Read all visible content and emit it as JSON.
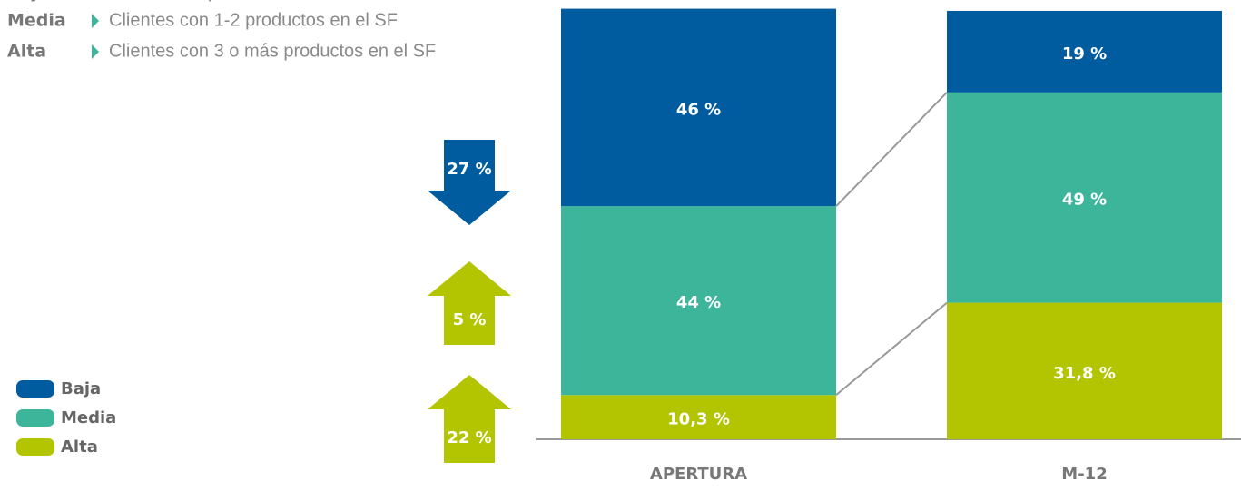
{
  "chart_data": {
    "type": "stacked_bar",
    "categories": [
      "APERTURA",
      "M-12"
    ],
    "series": [
      {
        "name": "Alta",
        "color": "#b3c500",
        "values": [
          10.3,
          31.8
        ],
        "value_labels": [
          "10,3 %",
          "31,8 %"
        ]
      },
      {
        "name": "Media",
        "color": "#3cb59b",
        "values": [
          44,
          49
        ],
        "value_labels": [
          "44 %",
          "49 %"
        ]
      },
      {
        "name": "Baja",
        "color": "#005b9f",
        "values": [
          46,
          19
        ],
        "value_labels": [
          "46 %",
          "19 %"
        ]
      }
    ],
    "ylim": [
      0,
      100
    ],
    "descriptions": [
      {
        "name": "Baja",
        "text": "Clientes sin productos en el SF"
      },
      {
        "name": "Media",
        "text": "Clientes con 1-2 productos en el SF"
      },
      {
        "name": "Alta",
        "text": "Clientes con 3 o más productos en el SF"
      }
    ],
    "annotations": [
      {
        "value": 27,
        "label": "27 %",
        "direction": "down",
        "color": "#005b9f"
      },
      {
        "value": 5,
        "label": "5 %",
        "direction": "up",
        "color": "#b3c500"
      },
      {
        "value": 22,
        "label": "22 %",
        "direction": "up",
        "color": "#b3c500"
      }
    ],
    "legend": "bottom-left"
  }
}
